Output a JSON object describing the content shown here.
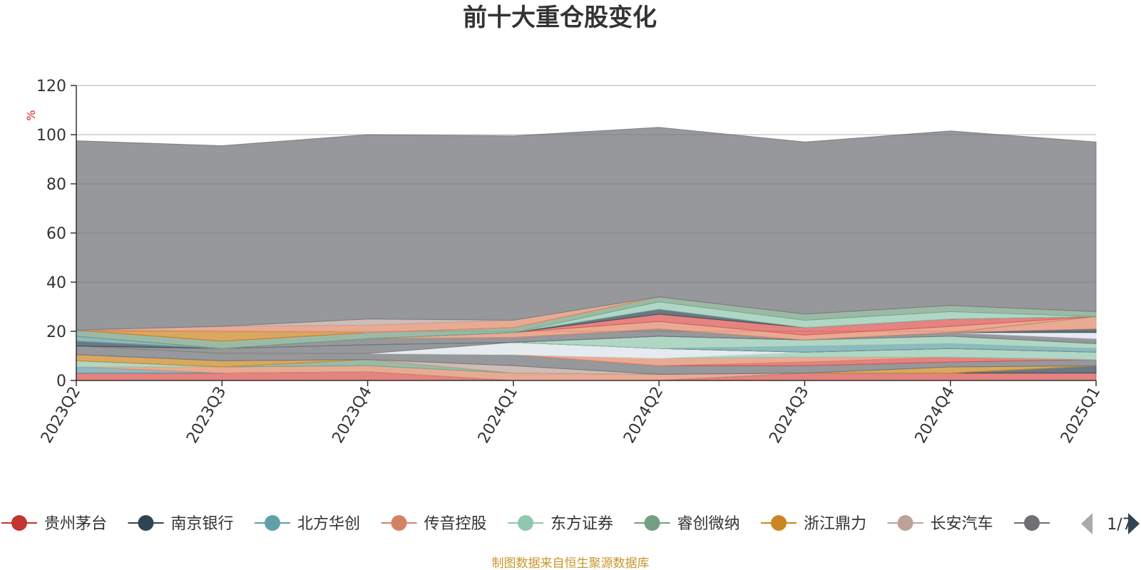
{
  "chart_data": {
    "type": "area",
    "stacked": true,
    "title": "前十大重仓股变化",
    "ylabel": "%",
    "ylim": [
      0,
      120
    ],
    "yticks": [
      0,
      20,
      40,
      60,
      80,
      100,
      120
    ],
    "grid": true,
    "categories": [
      "2023Q2",
      "2023Q3",
      "2023Q4",
      "2024Q1",
      "2024Q2",
      "2024Q3",
      "2024Q4",
      "2025Q1"
    ],
    "series": [
      {
        "name": "贵州茅台",
        "color": "#d9534f",
        "values": [
          3,
          3,
          3.5,
          0,
          0,
          3,
          3,
          3
        ]
      },
      {
        "name": "南京银行",
        "color": "#2f4554",
        "values": [
          0,
          0,
          0,
          0,
          0,
          0,
          0,
          3
        ]
      },
      {
        "name": "北方华创",
        "color": "#61a0a8",
        "values": [
          2.5,
          0,
          0,
          0,
          0,
          0,
          0,
          0
        ]
      },
      {
        "name": "传音控股",
        "color": "#e0896b",
        "values": [
          0,
          2.5,
          2.5,
          3,
          2.5,
          0,
          0,
          0
        ]
      },
      {
        "name": "东方证券",
        "color": "#91c7ae",
        "values": [
          2.5,
          0,
          0,
          0,
          0,
          0,
          0,
          0
        ]
      },
      {
        "name": "睿创微纳",
        "color": "#749f83",
        "values": [
          0,
          0,
          2.5,
          0,
          0,
          0,
          0,
          0
        ]
      },
      {
        "name": "浙江鼎力",
        "color": "#ca8622",
        "values": [
          2.5,
          2.5,
          0,
          0,
          0,
          0,
          2.5,
          0
        ]
      },
      {
        "name": "长安汽车",
        "color": "#bda29a",
        "values": [
          0,
          0,
          0,
          3,
          0,
          0,
          0,
          0
        ]
      },
      {
        "name": "",
        "color": "#6e7074",
        "values": [
          3.5,
          3,
          2.5,
          4.5,
          3.5,
          3,
          2,
          2.5
        ]
      },
      {
        "name": "",
        "color": "#d9534f",
        "values": [
          0,
          0,
          0,
          0,
          0,
          1.5,
          2,
          0
        ]
      },
      {
        "name": "",
        "color": "#e0896b",
        "values": [
          0,
          0,
          0,
          0,
          3,
          2,
          0,
          0
        ]
      },
      {
        "name": "",
        "color": "#91c7ae",
        "values": [
          0,
          0,
          0,
          0,
          0,
          2,
          3.5,
          3
        ]
      },
      {
        "name": "",
        "color": "#dde3ea",
        "values": [
          0,
          0,
          0,
          5,
          4,
          0,
          0,
          0
        ]
      },
      {
        "name": "",
        "color": "#6e7074",
        "values": [
          0,
          2,
          3.5,
          0,
          0,
          0,
          0,
          0
        ]
      },
      {
        "name": "",
        "color": "#2f4554",
        "values": [
          2,
          0,
          0,
          0,
          0,
          0,
          0,
          0
        ]
      },
      {
        "name": "",
        "color": "#ca8622",
        "values": [
          0,
          0,
          0,
          0,
          0,
          0,
          0,
          0
        ]
      },
      {
        "name": "",
        "color": "#61a0a8",
        "values": [
          0,
          0,
          0,
          0,
          0,
          2.5,
          2,
          1.5
        ]
      },
      {
        "name": "",
        "color": "#91c7ae",
        "values": [
          0,
          0,
          0,
          0,
          5,
          2.5,
          3,
          2
        ]
      },
      {
        "name": "",
        "color": "#6e7074",
        "values": [
          0,
          0,
          0,
          0,
          0,
          0,
          1.5,
          2
        ]
      },
      {
        "name": "",
        "color": "#dde3ea",
        "values": [
          0,
          0,
          0,
          0,
          0,
          0,
          0,
          2.5
        ]
      },
      {
        "name": "",
        "color": "#2f4554",
        "values": [
          0,
          0,
          0,
          0,
          0,
          0,
          0,
          1.5
        ]
      },
      {
        "name": "",
        "color": "#e0896b",
        "values": [
          0,
          0,
          0,
          0,
          0,
          0,
          0,
          5
        ]
      },
      {
        "name": "",
        "color": "#61a0a8",
        "values": [
          2,
          0,
          0,
          0,
          0,
          0,
          0,
          0
        ]
      },
      {
        "name": "",
        "color": "#6e7074",
        "values": [
          0,
          0,
          2.5,
          2,
          3,
          0,
          0,
          0
        ]
      },
      {
        "name": "",
        "color": "#e0896b",
        "values": [
          0,
          0,
          0,
          2,
          3,
          2,
          2.5,
          0
        ]
      },
      {
        "name": "",
        "color": "#d9534f",
        "values": [
          0,
          0,
          0,
          0,
          3,
          3,
          3,
          0
        ]
      },
      {
        "name": "",
        "color": "#2f4554",
        "values": [
          0,
          0,
          0,
          0,
          2,
          0,
          0,
          0
        ]
      },
      {
        "name": "",
        "color": "#91c7ae",
        "values": [
          0,
          0,
          0,
          0,
          3,
          3,
          3,
          0
        ]
      },
      {
        "name": "",
        "color": "#749f83",
        "values": [
          2.5,
          3,
          2.5,
          2,
          2,
          2.5,
          2.5,
          2
        ]
      },
      {
        "name": "",
        "color": "#d9534f",
        "values": [
          0,
          0,
          0,
          0,
          0,
          0,
          0,
          0
        ]
      },
      {
        "name": "",
        "color": "#ca8622",
        "values": [
          0,
          4,
          0,
          0,
          0,
          0,
          0,
          0
        ]
      },
      {
        "name": "",
        "color": "#e0896b",
        "values": [
          0,
          2,
          3,
          3,
          0,
          0,
          0,
          0
        ]
      },
      {
        "name": "",
        "color": "#bda29a",
        "values": [
          0,
          0,
          2.5,
          0,
          0,
          0,
          0,
          0
        ]
      },
      {
        "name": "",
        "color": "#dde3ea",
        "values": [
          0,
          0,
          0,
          0,
          0,
          0,
          0,
          0
        ]
      },
      {
        "name": "",
        "color": "#6e7074",
        "values": [
          77,
          73.5,
          75,
          75,
          69,
          70,
          71,
          69
        ]
      }
    ],
    "legend": {
      "items": [
        {
          "name": "贵州茅台",
          "color": "#c23531"
        },
        {
          "name": "南京银行",
          "color": "#2f4554"
        },
        {
          "name": "北方华创",
          "color": "#61a0a8"
        },
        {
          "name": "传音控股",
          "color": "#d48265"
        },
        {
          "name": "东方证券",
          "color": "#91c7ae"
        },
        {
          "name": "睿创微纳",
          "color": "#749f83"
        },
        {
          "name": "浙江鼎力",
          "color": "#ca8622"
        },
        {
          "name": "长安汽车",
          "color": "#bda29a"
        },
        {
          "name": "",
          "color": "#6e7074"
        }
      ],
      "page": "1/7",
      "placement": "bottom"
    }
  },
  "footer": {
    "source": "制图数据来自恒生聚源数据库"
  }
}
